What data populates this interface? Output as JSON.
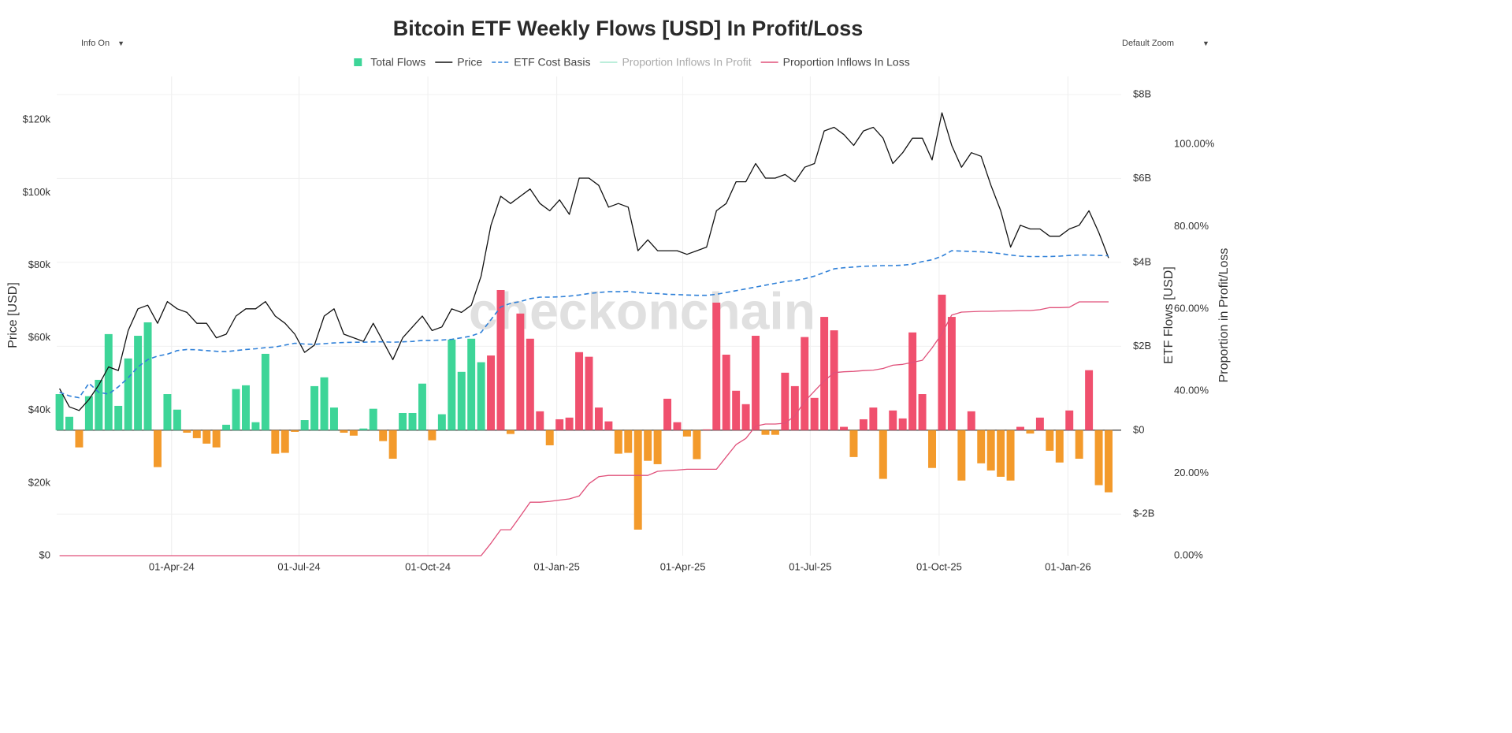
{
  "chart_data": {
    "type": "combo",
    "title": "Bitcoin ETF Weekly Flows [USD] In Profit/Loss",
    "watermark": "checkonchain",
    "ylabel": "Price [USD]",
    "y2label": "ETF Flows [USD]",
    "y3label": "Proportion in Profit/Loss",
    "legend": "top",
    "grid": true,
    "x": [
      "2024-01-12",
      "2024-01-19",
      "2024-01-26",
      "2024-02-02",
      "2024-02-09",
      "2024-02-16",
      "2024-02-23",
      "2024-03-01",
      "2024-03-08",
      "2024-03-15",
      "2024-03-22",
      "2024-03-29",
      "2024-04-05",
      "2024-04-12",
      "2024-04-19",
      "2024-04-26",
      "2024-05-03",
      "2024-05-10",
      "2024-05-17",
      "2024-05-24",
      "2024-05-31",
      "2024-06-07",
      "2024-06-14",
      "2024-06-21",
      "2024-06-28",
      "2024-07-05",
      "2024-07-12",
      "2024-07-19",
      "2024-07-26",
      "2024-08-02",
      "2024-08-09",
      "2024-08-16",
      "2024-08-23",
      "2024-08-30",
      "2024-09-06",
      "2024-09-13",
      "2024-09-20",
      "2024-09-27",
      "2024-10-04",
      "2024-10-11",
      "2024-10-18",
      "2024-10-25",
      "2024-11-01",
      "2024-11-08",
      "2024-11-15",
      "2024-11-22",
      "2024-11-29",
      "2024-12-06",
      "2024-12-13",
      "2024-12-20",
      "2024-12-27",
      "2025-01-03",
      "2025-01-10",
      "2025-01-17",
      "2025-01-24",
      "2025-01-31",
      "2025-02-07",
      "2025-02-14",
      "2025-02-21",
      "2025-02-28",
      "2025-03-07",
      "2025-03-14",
      "2025-03-21",
      "2025-03-28",
      "2025-04-04",
      "2025-04-11",
      "2025-04-18",
      "2025-04-25",
      "2025-05-02",
      "2025-05-09",
      "2025-05-16",
      "2025-05-23",
      "2025-05-30",
      "2025-06-06",
      "2025-06-13",
      "2025-06-20",
      "2025-06-27",
      "2025-07-04",
      "2025-07-11",
      "2025-07-18",
      "2025-07-25",
      "2025-08-01",
      "2025-08-08",
      "2025-08-15",
      "2025-08-22",
      "2025-08-29",
      "2025-09-05",
      "2025-09-12",
      "2025-09-19",
      "2025-09-26",
      "2025-10-03",
      "2025-10-10",
      "2025-10-17",
      "2025-10-24",
      "2025-10-31",
      "2025-11-07",
      "2025-11-14",
      "2025-11-21",
      "2025-11-28",
      "2025-12-05",
      "2025-12-12",
      "2025-12-19",
      "2025-12-26",
      "2026-01-02",
      "2026-01-09",
      "2026-01-16",
      "2026-01-23",
      "2026-01-30"
    ],
    "xlim": [
      "2024-01-10",
      "2026-02-08"
    ],
    "xticks": [
      {
        "value": "2024-04-01",
        "label": "01-Apr-24"
      },
      {
        "value": "2024-07-01",
        "label": "01-Jul-24"
      },
      {
        "value": "2024-10-01",
        "label": "01-Oct-24"
      },
      {
        "value": "2025-01-01",
        "label": "01-Jan-25"
      },
      {
        "value": "2025-04-01",
        "label": "01-Apr-25"
      },
      {
        "value": "2025-07-01",
        "label": "01-Jul-25"
      },
      {
        "value": "2025-10-01",
        "label": "01-Oct-25"
      },
      {
        "value": "2026-01-01",
        "label": "01-Jan-26"
      }
    ],
    "ylim": [
      0,
      132000
    ],
    "yticks": [
      {
        "value": 0,
        "label": "$0"
      },
      {
        "value": 20000,
        "label": "$20k"
      },
      {
        "value": 40000,
        "label": "$40k"
      },
      {
        "value": 60000,
        "label": "$60k"
      },
      {
        "value": 80000,
        "label": "$80k"
      },
      {
        "value": 100000,
        "label": "$100k"
      },
      {
        "value": 120000,
        "label": "$120k"
      }
    ],
    "y2lim": [
      -2990000000,
      8430000000
    ],
    "y2ticks": [
      {
        "value": -2000000000,
        "label": "$-2B"
      },
      {
        "value": 0,
        "label": "$0"
      },
      {
        "value": 2000000000,
        "label": "$2B"
      },
      {
        "value": 4000000000,
        "label": "$4B"
      },
      {
        "value": 6000000000,
        "label": "$6B"
      },
      {
        "value": 8000000000,
        "label": "$8B"
      }
    ],
    "y3lim": [
      0,
      116.5
    ],
    "y3ticks": [
      {
        "value": 0,
        "label": "0.00%"
      },
      {
        "value": 20,
        "label": "20.00%"
      },
      {
        "value": 40,
        "label": "40.00%"
      },
      {
        "value": 60,
        "label": "60.00%"
      },
      {
        "value": 80,
        "label": "80.00%"
      },
      {
        "value": 100,
        "label": "100.00%"
      }
    ],
    "series": [
      {
        "name": "Total Flows",
        "type": "bar",
        "axis": "y2",
        "color": "#3dd598",
        "values": [
          860000000,
          320000000,
          -410000000,
          810000000,
          1200000000,
          2290000000,
          580000000,
          1710000000,
          2250000000,
          2570000000,
          -880000000,
          860000000,
          490000000,
          -60000000,
          -190000000,
          -320000000,
          -410000000,
          130000000,
          980000000,
          1070000000,
          190000000,
          1820000000,
          -560000000,
          -540000000,
          -40000000,
          240000000,
          1050000000,
          1260000000,
          540000000,
          -60000000,
          -130000000,
          40000000,
          510000000,
          -260000000,
          -680000000,
          410000000,
          410000000,
          1110000000,
          -240000000,
          380000000,
          2160000000,
          1390000000,
          2180000000,
          1620000000,
          1780000000,
          3340000000,
          -90000000,
          2780000000,
          2180000000,
          450000000,
          -360000000,
          260000000,
          300000000,
          1860000000,
          1750000000,
          540000000,
          210000000,
          -560000000,
          -540000000,
          -2370000000,
          -730000000,
          -810000000,
          750000000,
          190000000,
          -150000000,
          -690000000,
          20000000,
          3040000000,
          1800000000,
          940000000,
          620000000,
          2250000000,
          -110000000,
          -110000000,
          1370000000,
          1050000000,
          2220000000,
          770000000,
          2700000000,
          2380000000,
          80000000,
          -640000000,
          260000000,
          540000000,
          -1160000000,
          470000000,
          280000000,
          2330000000,
          860000000,
          -900000000,
          3230000000,
          2700000000,
          -1200000000,
          450000000,
          -790000000,
          -960000000,
          -1110000000,
          -1200000000,
          80000000,
          -80000000,
          300000000,
          -490000000,
          -770000000,
          470000000,
          -680000000,
          1430000000,
          -1310000000,
          -1480000000
        ],
        "colors": [
          "#3dd598",
          "#3dd598",
          "#f39a2b",
          "#3dd598",
          "#3dd598",
          "#3dd598",
          "#3dd598",
          "#3dd598",
          "#3dd598",
          "#3dd598",
          "#f39a2b",
          "#3dd598",
          "#3dd598",
          "#f39a2b",
          "#f39a2b",
          "#f39a2b",
          "#f39a2b",
          "#3dd598",
          "#3dd598",
          "#3dd598",
          "#3dd598",
          "#3dd598",
          "#f39a2b",
          "#f39a2b",
          "#f39a2b",
          "#3dd598",
          "#3dd598",
          "#3dd598",
          "#3dd598",
          "#f39a2b",
          "#f39a2b",
          "#3dd598",
          "#3dd598",
          "#f39a2b",
          "#f39a2b",
          "#3dd598",
          "#3dd598",
          "#3dd598",
          "#f39a2b",
          "#3dd598",
          "#3dd598",
          "#3dd598",
          "#3dd598",
          "#3dd598",
          "#f0506e",
          "#f0506e",
          "#f39a2b",
          "#f0506e",
          "#f0506e",
          "#f0506e",
          "#f39a2b",
          "#f0506e",
          "#f0506e",
          "#f0506e",
          "#f0506e",
          "#f0506e",
          "#f0506e",
          "#f39a2b",
          "#f39a2b",
          "#f39a2b",
          "#f39a2b",
          "#f39a2b",
          "#f0506e",
          "#f0506e",
          "#f39a2b",
          "#f39a2b",
          "#f0506e",
          "#f0506e",
          "#f0506e",
          "#f0506e",
          "#f0506e",
          "#f0506e",
          "#f39a2b",
          "#f39a2b",
          "#f0506e",
          "#f0506e",
          "#f0506e",
          "#f0506e",
          "#f0506e",
          "#f0506e",
          "#f0506e",
          "#f39a2b",
          "#f0506e",
          "#f0506e",
          "#f39a2b",
          "#f0506e",
          "#f0506e",
          "#f0506e",
          "#f0506e",
          "#f39a2b",
          "#f0506e",
          "#f0506e",
          "#f39a2b",
          "#f0506e",
          "#f39a2b",
          "#f39a2b",
          "#f39a2b",
          "#f39a2b",
          "#f0506e",
          "#f39a2b",
          "#f0506e",
          "#f39a2b",
          "#f39a2b",
          "#f0506e",
          "#f39a2b",
          "#f0506e",
          "#f39a2b",
          "#f39a2b"
        ]
      },
      {
        "name": "Price",
        "type": "line",
        "axis": "y",
        "color": "#111111",
        "values": [
          46000,
          41000,
          40000,
          43000,
          47000,
          52000,
          51000,
          62000,
          68000,
          69000,
          64000,
          70000,
          68000,
          67000,
          64000,
          64000,
          60000,
          61000,
          66000,
          68000,
          68000,
          70000,
          66000,
          64000,
          61000,
          56000,
          58000,
          66000,
          68000,
          61000,
          60000,
          59000,
          64000,
          59000,
          54000,
          60000,
          63000,
          66000,
          62000,
          63000,
          68000,
          67000,
          69000,
          77000,
          91000,
          99000,
          97000,
          99000,
          101000,
          97000,
          95000,
          98000,
          94000,
          104000,
          104000,
          102000,
          96000,
          97000,
          96000,
          84000,
          87000,
          84000,
          84000,
          84000,
          83000,
          84000,
          85000,
          95000,
          97000,
          103000,
          103000,
          108000,
          104000,
          104000,
          105000,
          103000,
          107000,
          108000,
          117000,
          118000,
          116000,
          113000,
          117000,
          118000,
          115000,
          108000,
          111000,
          115000,
          115000,
          109000,
          122000,
          113000,
          107000,
          111000,
          110000,
          102000,
          95000,
          85000,
          91000,
          90000,
          90000,
          88000,
          88000,
          90000,
          91000,
          95000,
          89000,
          82000
        ]
      },
      {
        "name": "ETF Cost Basis",
        "type": "line",
        "axis": "y",
        "color": "#2f80d8",
        "dashed": true,
        "values": [
          45000,
          44000,
          43500,
          47500,
          45000,
          44500,
          46500,
          49000,
          52000,
          54000,
          55000,
          55500,
          56500,
          56800,
          56700,
          56500,
          56300,
          56200,
          56500,
          56800,
          57000,
          57300,
          57500,
          58000,
          58500,
          58300,
          58200,
          58400,
          58600,
          58700,
          58800,
          58800,
          58900,
          58900,
          58800,
          58900,
          59000,
          59300,
          59300,
          59400,
          59600,
          60000,
          60500,
          61500,
          65000,
          68500,
          69500,
          70000,
          70800,
          71200,
          71200,
          71300,
          71500,
          71800,
          72200,
          72500,
          72700,
          72700,
          72800,
          72500,
          72300,
          72200,
          72000,
          71900,
          71800,
          71700,
          71700,
          72000,
          72500,
          73000,
          73500,
          74000,
          74500,
          75000,
          75500,
          75800,
          76300,
          77000,
          78000,
          79000,
          79300,
          79500,
          79700,
          79800,
          79900,
          79900,
          80000,
          80300,
          81000,
          81500,
          82500,
          84000,
          83900,
          83800,
          83700,
          83500,
          83200,
          82800,
          82500,
          82400,
          82400,
          82400,
          82500,
          82700,
          82800,
          82800,
          82700,
          82600
        ]
      },
      {
        "name": "Proportion Inflows In Profit",
        "type": "line",
        "axis": "y3",
        "color": "#a6e8cf",
        "visible": false
      },
      {
        "name": "Proportion Inflows In Loss",
        "type": "line",
        "axis": "y3",
        "color": "#e0507a",
        "values": [
          0,
          0,
          0,
          0,
          0,
          0,
          0,
          0,
          0,
          0,
          0,
          0,
          0,
          0,
          0,
          0,
          0,
          0,
          0,
          0,
          0,
          0,
          0,
          0,
          0,
          0,
          0,
          0,
          0,
          0,
          0,
          0,
          0,
          0,
          0,
          0,
          0,
          0,
          0,
          0,
          0,
          0,
          0,
          0,
          3,
          6.3,
          6.3,
          9.6,
          13,
          13,
          13.2,
          13.5,
          13.8,
          14.5,
          17.5,
          19.2,
          19.5,
          19.5,
          19.5,
          19.5,
          19.5,
          20.5,
          20.7,
          20.8,
          21,
          21,
          21,
          21,
          24,
          27,
          28.5,
          31.5,
          32,
          32,
          32.2,
          34,
          37.5,
          40,
          42.5,
          44.5,
          44.7,
          44.8,
          45,
          45.1,
          45.5,
          46.3,
          46.5,
          47,
          47.5,
          50.5,
          54,
          58.5,
          59.2,
          59.3,
          59.4,
          59.4,
          59.5,
          59.5,
          59.6,
          59.6,
          59.8,
          60.3,
          60.3,
          60.4,
          61.7,
          61.7,
          61.7,
          61.7
        ]
      }
    ]
  },
  "controls": {
    "info": "Info On",
    "zoom": "Default Zoom"
  }
}
